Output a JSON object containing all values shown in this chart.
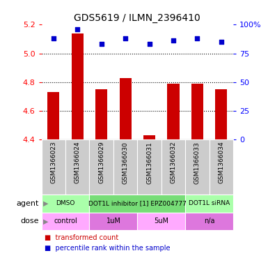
{
  "title": "GDS5619 / ILMN_2396410",
  "samples": [
    "GSM1366023",
    "GSM1366024",
    "GSM1366029",
    "GSM1366030",
    "GSM1366031",
    "GSM1366032",
    "GSM1366033",
    "GSM1366034"
  ],
  "bar_values": [
    4.73,
    5.14,
    4.75,
    4.83,
    4.43,
    4.79,
    4.79,
    4.75
  ],
  "bar_base": 4.4,
  "percentile_values": [
    88,
    96,
    83,
    88,
    83,
    86,
    88,
    85
  ],
  "ylim": [
    4.4,
    5.2
  ],
  "yticks_left": [
    4.4,
    4.6,
    4.8,
    5.0,
    5.2
  ],
  "yticks_right": [
    0,
    25,
    50,
    75,
    100
  ],
  "gridlines": [
    4.6,
    4.8,
    5.0
  ],
  "bar_color": "#cc0000",
  "dot_color": "#0000cc",
  "agent_groups": [
    {
      "label": "DMSO",
      "span": [
        0,
        2
      ],
      "color": "#aaffaa"
    },
    {
      "label": "DOT1L inhibitor [1] EPZ004777",
      "span": [
        2,
        6
      ],
      "color": "#77dd77"
    },
    {
      "label": "DOT1L siRNA",
      "span": [
        6,
        8
      ],
      "color": "#aaffaa"
    }
  ],
  "dose_groups": [
    {
      "label": "control",
      "span": [
        0,
        2
      ],
      "color": "#ffaaff"
    },
    {
      "label": "1uM",
      "span": [
        2,
        4
      ],
      "color": "#dd77dd"
    },
    {
      "label": "5uM",
      "span": [
        4,
        6
      ],
      "color": "#ffaaff"
    },
    {
      "label": "n/a",
      "span": [
        6,
        8
      ],
      "color": "#dd77dd"
    }
  ],
  "legend_items": [
    {
      "label": "transformed count",
      "color": "#cc0000"
    },
    {
      "label": "percentile rank within the sample",
      "color": "#0000cc"
    }
  ],
  "agent_label": "agent",
  "dose_label": "dose",
  "sample_bg": "#cccccc"
}
